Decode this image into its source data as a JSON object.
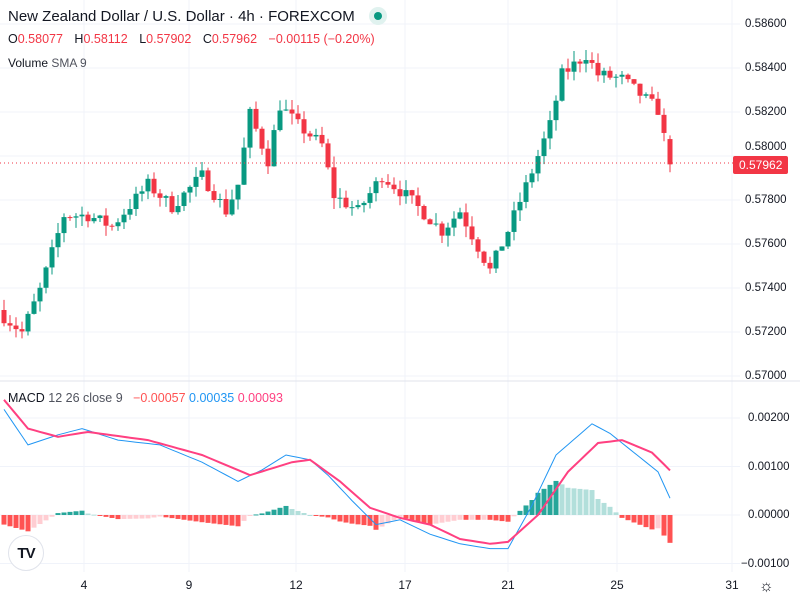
{
  "header": {
    "title": "New Zealand Dollar / U.S. Dollar · 4h · FOREXCOM",
    "status": "market-open",
    "ohlc": {
      "o_label": "O",
      "o": "0.58077",
      "h_label": "H",
      "h": "0.58112",
      "l_label": "L",
      "l": "0.57902",
      "c_label": "C",
      "c": "0.57962",
      "change": "−0.00115 (−0.20%)"
    },
    "volume_label": "Volume",
    "volume_sma": "SMA 9"
  },
  "macd_legend": {
    "name": "MACD",
    "params": "12 26 close 9",
    "hist": "−0.00057",
    "macd": "0.00035",
    "signal": "0.00093"
  },
  "last_price": "0.57962",
  "price_axis": [
    "0.58600",
    "0.58400",
    "0.58200",
    "0.58000",
    "0.57800",
    "0.57600",
    "0.57400",
    "0.57200",
    "0.57000"
  ],
  "macd_axis": [
    "0.00200",
    "0.00100",
    "0.00000",
    "−0.00100"
  ],
  "date_axis": [
    "4",
    "9",
    "12",
    "17",
    "21",
    "25",
    "31"
  ],
  "colors": {
    "up": "#089981",
    "down": "#f23645",
    "macd": "#2196f3",
    "signal": "#ff4081",
    "hist_up_strong": "#26a69a",
    "hist_up_weak": "#b2dfdb",
    "hist_down_strong": "#ff5252",
    "hist_down_weak": "#ffcdd2"
  },
  "logo_text": "TV",
  "chart_data": {
    "type": "candlestick",
    "candles": 112,
    "close_path": [
      [
        0,
        0.5727
      ],
      [
        3,
        0.572
      ],
      [
        6,
        0.5739
      ],
      [
        10,
        0.5773
      ],
      [
        14,
        0.5773
      ],
      [
        18,
        0.5768
      ],
      [
        24,
        0.5787
      ],
      [
        28,
        0.5777
      ],
      [
        33,
        0.5791
      ],
      [
        37,
        0.5775
      ],
      [
        39,
        0.5787
      ],
      [
        41,
        0.5819
      ],
      [
        44,
        0.5798
      ],
      [
        46,
        0.5823
      ],
      [
        49,
        0.5814
      ],
      [
        53,
        0.5805
      ],
      [
        55,
        0.5782
      ],
      [
        59,
        0.5775
      ],
      [
        63,
        0.5791
      ],
      [
        67,
        0.5782
      ],
      [
        73,
        0.5766
      ],
      [
        76,
        0.5775
      ],
      [
        81,
        0.5748
      ],
      [
        84,
        0.5766
      ],
      [
        88,
        0.5793
      ],
      [
        91,
        0.5814
      ],
      [
        93,
        0.5837
      ],
      [
        97,
        0.5846
      ],
      [
        99,
        0.5837
      ],
      [
        103,
        0.5835
      ],
      [
        106,
        0.5828
      ],
      [
        109,
        0.5821
      ],
      [
        111,
        0.57962
      ]
    ],
    "price_range": [
      0.57,
      0.586
    ],
    "macd_line": [
      [
        0,
        0.0022
      ],
      [
        4,
        0.00146
      ],
      [
        9,
        0.00167
      ],
      [
        13,
        0.0018
      ],
      [
        19,
        0.00156
      ],
      [
        26,
        0.00146
      ],
      [
        33,
        0.0011
      ],
      [
        39,
        0.0007
      ],
      [
        43,
        0.00094
      ],
      [
        47,
        0.00125
      ],
      [
        51,
        0.00115
      ],
      [
        54,
        0.00083
      ],
      [
        58,
        0.0003
      ],
      [
        62,
        -0.0002
      ],
      [
        66,
        -0.0001
      ],
      [
        71,
        -0.0004
      ],
      [
        76,
        -0.0006
      ],
      [
        81,
        -0.0007
      ],
      [
        84,
        -0.0007
      ],
      [
        88,
        0.0002
      ],
      [
        92,
        0.00125
      ],
      [
        98,
        0.0019
      ],
      [
        101,
        0.0017
      ],
      [
        104,
        0.0014
      ],
      [
        109,
        0.0009
      ],
      [
        111,
        0.00035
      ]
    ],
    "signal_line": [
      [
        0,
        0.0024
      ],
      [
        4,
        0.0018
      ],
      [
        9,
        0.00163
      ],
      [
        14,
        0.00173
      ],
      [
        24,
        0.00156
      ],
      [
        33,
        0.00125
      ],
      [
        41,
        0.00083
      ],
      [
        48,
        0.0011
      ],
      [
        51,
        0.00115
      ],
      [
        56,
        0.0007
      ],
      [
        61,
        0.00015
      ],
      [
        66,
        -6e-05
      ],
      [
        71,
        -0.0002
      ],
      [
        76,
        -0.0005
      ],
      [
        81,
        -0.0006
      ],
      [
        84,
        -0.00056
      ],
      [
        89,
        0
      ],
      [
        94,
        0.0009
      ],
      [
        99,
        0.0015
      ],
      [
        103,
        0.00156
      ],
      [
        108,
        0.0013
      ],
      [
        111,
        0.00093
      ]
    ],
    "macd_range": [
      -0.001,
      0.002
    ]
  }
}
